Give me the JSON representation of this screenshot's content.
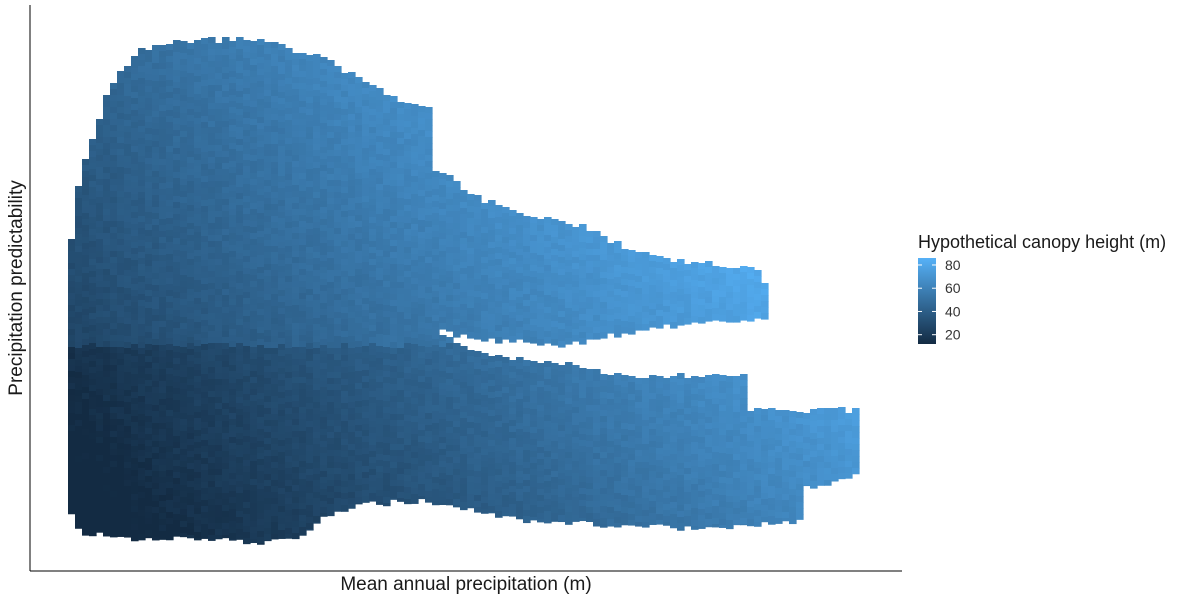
{
  "chart_data": {
    "type": "heatmap",
    "title": "",
    "xlabel": "Mean annual precipitation (m)",
    "ylabel": "Precipitation predictability",
    "x_ticks_shown": false,
    "y_ticks_shown": false,
    "grid": false,
    "legend": {
      "title": "Hypothetical canopy height (m)",
      "placement": "right",
      "ticks": [
        20,
        40,
        60,
        80
      ],
      "range": [
        12,
        86
      ],
      "colors": {
        "low": "#132B43",
        "high": "#56B1F7"
      }
    },
    "surface": {
      "x_domain": [
        0,
        100
      ],
      "y_domain": [
        0,
        100
      ],
      "lobes": [
        {
          "name_hint": "main",
          "x": [
            5,
            50
          ],
          "y_top": 95,
          "y_bottom": 5,
          "value_range": [
            14,
            60
          ]
        },
        {
          "name_hint": "upper-arm",
          "x": [
            40,
            84
          ],
          "y_center": 50,
          "value_range": [
            50,
            86
          ]
        },
        {
          "name_hint": "lower-arm",
          "x": [
            30,
            95
          ],
          "y_center": 22,
          "value_range": [
            38,
            70
          ]
        }
      ]
    }
  }
}
